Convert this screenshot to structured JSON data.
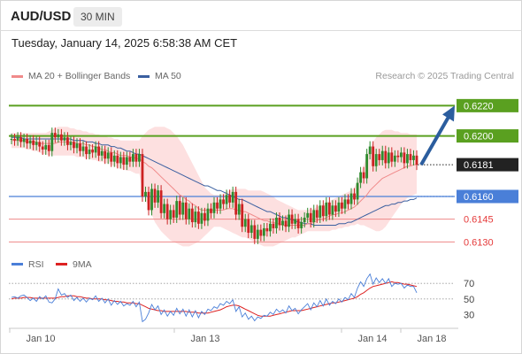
{
  "header": {
    "symbol": "AUD/USD",
    "timeframe": "30 MIN",
    "datetime": "Tuesday, January 14, 2025 6:58:38 AM CET"
  },
  "legend": {
    "ma20_label": "MA 20 + Bollinger Bands",
    "ma20_color": "#f08a8a",
    "ma50_label": "MA 50",
    "ma50_color": "#3a5fa0"
  },
  "credit": "Research © 2025 Trading Central",
  "colors": {
    "up": "#2e8b2e",
    "down": "#cc2222",
    "resistance": "#5aa020",
    "pivot": "#4a7fd8",
    "support": "#ee8888",
    "band": "#fde0e0",
    "rsi": "#4a7fd8",
    "rsi_ma": "#dd2222",
    "arrow": "#2b5d9e"
  },
  "chart_data": [
    {
      "type": "candlestick",
      "x_ticks": [
        "Jan 10",
        "Jan 13",
        "Jan 14",
        "Jan 18"
      ],
      "y_range": [
        0.6122,
        0.6236
      ],
      "levels": [
        {
          "value": 0.622,
          "label": "0.6220",
          "kind": "resistance"
        },
        {
          "value": 0.62,
          "label": "0.6200",
          "kind": "resistance"
        },
        {
          "value": 0.6181,
          "label": "0.6181",
          "kind": "current"
        },
        {
          "value": 0.616,
          "label": "0.6160",
          "kind": "pivot"
        },
        {
          "value": 0.6145,
          "label": "0.6145",
          "kind": "support"
        },
        {
          "value": 0.613,
          "label": "0.6130",
          "kind": "support"
        }
      ],
      "close": [
        0.6198,
        0.6197,
        0.6199,
        0.6196,
        0.6198,
        0.6195,
        0.6197,
        0.6194,
        0.6196,
        0.6193,
        0.6191,
        0.6194,
        0.619,
        0.6202,
        0.6199,
        0.6201,
        0.6197,
        0.6199,
        0.6194,
        0.6196,
        0.6192,
        0.6195,
        0.619,
        0.6193,
        0.6188,
        0.6191,
        0.6189,
        0.6193,
        0.6187,
        0.619,
        0.6185,
        0.6189,
        0.6183,
        0.6187,
        0.6182,
        0.6186,
        0.6181,
        0.6186,
        0.6183,
        0.6188,
        0.6183,
        0.6188,
        0.616,
        0.6163,
        0.6151,
        0.6165,
        0.6156,
        0.6164,
        0.6149,
        0.6155,
        0.6145,
        0.6151,
        0.6146,
        0.6157,
        0.6148,
        0.6156,
        0.6145,
        0.6152,
        0.6143,
        0.615,
        0.6142,
        0.6149,
        0.6144,
        0.6152,
        0.6149,
        0.6156,
        0.6152,
        0.6158,
        0.6155,
        0.6161,
        0.6156,
        0.6163,
        0.6148,
        0.6155,
        0.614,
        0.6145,
        0.6136,
        0.6141,
        0.6132,
        0.6138,
        0.6134,
        0.6139,
        0.6137,
        0.6142,
        0.6139,
        0.6146,
        0.6141,
        0.6144,
        0.614,
        0.6148,
        0.6142,
        0.6145,
        0.6139,
        0.6143,
        0.6146,
        0.6149,
        0.6143,
        0.6151,
        0.6146,
        0.6154,
        0.6147,
        0.6156,
        0.6148,
        0.6154,
        0.615,
        0.6156,
        0.6152,
        0.6158,
        0.6155,
        0.6162,
        0.6158,
        0.6169,
        0.6176,
        0.6172,
        0.6188,
        0.6193,
        0.618,
        0.6188,
        0.6184,
        0.619,
        0.6182,
        0.6189,
        0.6183,
        0.6187,
        0.6186,
        0.6189,
        0.6182,
        0.6188,
        0.6184,
        0.6187,
        0.6181
      ],
      "ma20": [
        0.6197,
        0.6197,
        0.6197,
        0.6197,
        0.6197,
        0.6196,
        0.6196,
        0.6196,
        0.6196,
        0.6195,
        0.6195,
        0.6195,
        0.6195,
        0.6195,
        0.6195,
        0.6196,
        0.6196,
        0.6196,
        0.6196,
        0.6196,
        0.6196,
        0.6195,
        0.6195,
        0.6195,
        0.6194,
        0.6194,
        0.6193,
        0.6193,
        0.6192,
        0.6191,
        0.6191,
        0.619,
        0.6189,
        0.6189,
        0.6188,
        0.6187,
        0.6187,
        0.6187,
        0.6186,
        0.6186,
        0.6185,
        0.6185,
        0.6183,
        0.6182,
        0.618,
        0.6179,
        0.6177,
        0.6175,
        0.6173,
        0.6171,
        0.6169,
        0.6167,
        0.6165,
        0.6163,
        0.6161,
        0.616,
        0.6158,
        0.6157,
        0.6155,
        0.6154,
        0.6152,
        0.6151,
        0.6151,
        0.6151,
        0.6151,
        0.6151,
        0.6151,
        0.6151,
        0.6151,
        0.6152,
        0.6152,
        0.6152,
        0.6151,
        0.6151,
        0.615,
        0.615,
        0.6149,
        0.6148,
        0.6147,
        0.6146,
        0.6145,
        0.6144,
        0.6144,
        0.6143,
        0.6143,
        0.6142,
        0.6142,
        0.6141,
        0.6141,
        0.6141,
        0.6141,
        0.6141,
        0.6141,
        0.6141,
        0.6141,
        0.6142,
        0.6142,
        0.6143,
        0.6144,
        0.6145,
        0.6145,
        0.6146,
        0.6147,
        0.6148,
        0.6148,
        0.6149,
        0.6149,
        0.615,
        0.6151,
        0.6152,
        0.6153,
        0.6155,
        0.6157,
        0.6159,
        0.6161,
        0.6164,
        0.6166,
        0.6168,
        0.617,
        0.6172,
        0.6173,
        0.6174,
        0.6175,
        0.6176,
        0.6177,
        0.6178,
        0.6179,
        0.618,
        0.618,
        0.6181,
        0.6181
      ],
      "bb_upper": [
        0.6202,
        0.6202,
        0.6202,
        0.6202,
        0.6202,
        0.6202,
        0.6202,
        0.6202,
        0.6202,
        0.6202,
        0.6202,
        0.6202,
        0.6203,
        0.6204,
        0.6205,
        0.6206,
        0.6206,
        0.6206,
        0.6206,
        0.6205,
        0.6205,
        0.6204,
        0.6204,
        0.6203,
        0.6203,
        0.6202,
        0.6202,
        0.6201,
        0.6201,
        0.62,
        0.62,
        0.6199,
        0.6199,
        0.6198,
        0.6198,
        0.6197,
        0.6197,
        0.6197,
        0.6197,
        0.6197,
        0.6197,
        0.6197,
        0.62,
        0.6202,
        0.6204,
        0.6205,
        0.6206,
        0.6206,
        0.6206,
        0.6206,
        0.6205,
        0.6204,
        0.6202,
        0.62,
        0.6197,
        0.6194,
        0.619,
        0.6186,
        0.6182,
        0.6178,
        0.6174,
        0.617,
        0.6166,
        0.6164,
        0.6162,
        0.6161,
        0.6161,
        0.6161,
        0.6162,
        0.6163,
        0.6164,
        0.6165,
        0.6165,
        0.6165,
        0.6165,
        0.6165,
        0.6164,
        0.6164,
        0.6164,
        0.6164,
        0.6164,
        0.6163,
        0.6162,
        0.6161,
        0.616,
        0.6158,
        0.6157,
        0.6156,
        0.6155,
        0.6154,
        0.6153,
        0.6152,
        0.6151,
        0.6151,
        0.6151,
        0.6151,
        0.6152,
        0.6152,
        0.6153,
        0.6154,
        0.6155,
        0.6156,
        0.6157,
        0.6158,
        0.6159,
        0.616,
        0.6161,
        0.6162,
        0.6163,
        0.6164,
        0.6166,
        0.617,
        0.6175,
        0.6181,
        0.6187,
        0.6192,
        0.6196,
        0.6199,
        0.6201,
        0.6203,
        0.6204,
        0.6204,
        0.6204,
        0.6203,
        0.6203,
        0.6202,
        0.6202,
        0.6202,
        0.6201,
        0.6201,
        0.6201
      ],
      "bb_lower": [
        0.6192,
        0.6192,
        0.6192,
        0.6192,
        0.6192,
        0.6191,
        0.6191,
        0.619,
        0.619,
        0.6189,
        0.6188,
        0.6188,
        0.6187,
        0.6187,
        0.6187,
        0.6187,
        0.6187,
        0.6187,
        0.6187,
        0.6187,
        0.6187,
        0.6186,
        0.6186,
        0.6186,
        0.6185,
        0.6185,
        0.6184,
        0.6184,
        0.6183,
        0.6183,
        0.6182,
        0.6182,
        0.6181,
        0.618,
        0.6179,
        0.6178,
        0.6178,
        0.6177,
        0.6177,
        0.6176,
        0.6175,
        0.6175,
        0.6164,
        0.6158,
        0.6153,
        0.6148,
        0.6143,
        0.614,
        0.6137,
        0.6135,
        0.6133,
        0.6131,
        0.613,
        0.6129,
        0.6128,
        0.6127,
        0.6127,
        0.6127,
        0.6128,
        0.6129,
        0.613,
        0.6132,
        0.6134,
        0.6136,
        0.6138,
        0.614,
        0.614,
        0.614,
        0.6139,
        0.6138,
        0.6137,
        0.6136,
        0.6135,
        0.6134,
        0.6133,
        0.6133,
        0.6132,
        0.6131,
        0.613,
        0.6129,
        0.6128,
        0.6127,
        0.6127,
        0.6127,
        0.6127,
        0.6128,
        0.6129,
        0.613,
        0.6131,
        0.6132,
        0.6133,
        0.6133,
        0.6134,
        0.6135,
        0.6136,
        0.6137,
        0.6137,
        0.6137,
        0.6137,
        0.6137,
        0.6137,
        0.6137,
        0.6137,
        0.6138,
        0.6138,
        0.6139,
        0.6139,
        0.614,
        0.614,
        0.6141,
        0.6141,
        0.6142,
        0.6141,
        0.6141,
        0.614,
        0.6139,
        0.6138,
        0.6137,
        0.6137,
        0.6138,
        0.614,
        0.6143,
        0.6146,
        0.6149,
        0.6152,
        0.6155,
        0.6157,
        0.6159,
        0.616,
        0.6161,
        0.6162
      ],
      "ma50": [
        0.6199,
        0.6199,
        0.6199,
        0.6199,
        0.6198,
        0.6198,
        0.6198,
        0.6198,
        0.6198,
        0.6198,
        0.6198,
        0.6198,
        0.6198,
        0.6198,
        0.6198,
        0.6198,
        0.6198,
        0.6198,
        0.6198,
        0.6198,
        0.6197,
        0.6197,
        0.6197,
        0.6197,
        0.6196,
        0.6196,
        0.6196,
        0.6195,
        0.6195,
        0.6194,
        0.6194,
        0.6194,
        0.6193,
        0.6193,
        0.6192,
        0.6192,
        0.6191,
        0.619,
        0.619,
        0.6189,
        0.6188,
        0.6188,
        0.6187,
        0.6186,
        0.6185,
        0.6184,
        0.6183,
        0.6182,
        0.6181,
        0.618,
        0.6179,
        0.6178,
        0.6177,
        0.6176,
        0.6175,
        0.6174,
        0.6173,
        0.6172,
        0.6171,
        0.617,
        0.6169,
        0.6168,
        0.6167,
        0.6167,
        0.6166,
        0.6165,
        0.6164,
        0.6164,
        0.6163,
        0.6162,
        0.6161,
        0.616,
        0.6159,
        0.6158,
        0.6158,
        0.6157,
        0.6156,
        0.6155,
        0.6154,
        0.6153,
        0.6152,
        0.6151,
        0.615,
        0.615,
        0.6149,
        0.6148,
        0.6147,
        0.6146,
        0.6146,
        0.6145,
        0.6145,
        0.6144,
        0.6143,
        0.6143,
        0.6142,
        0.6142,
        0.6142,
        0.6141,
        0.6141,
        0.6141,
        0.6141,
        0.6141,
        0.6141,
        0.6141,
        0.6141,
        0.6142,
        0.6142,
        0.6142,
        0.6143,
        0.6143,
        0.6144,
        0.6145,
        0.6146,
        0.6147,
        0.6148,
        0.6149,
        0.615,
        0.6151,
        0.6152,
        0.6153,
        0.6154,
        0.6154,
        0.6155,
        0.6155,
        0.6156,
        0.6156,
        0.6157,
        0.6157,
        0.6158,
        0.6158,
        0.6159
      ]
    },
    {
      "type": "line",
      "legend": [
        "RSI",
        "9MA"
      ],
      "y_ticks": [
        "70",
        "50",
        "30"
      ],
      "y_range": [
        18,
        85
      ],
      "rsi": [
        52,
        53,
        51,
        54,
        55,
        52,
        48,
        51,
        47,
        53,
        50,
        54,
        46,
        45,
        50,
        63,
        55,
        57,
        52,
        55,
        48,
        52,
        47,
        51,
        46,
        51,
        49,
        54,
        47,
        51,
        45,
        50,
        42,
        48,
        43,
        47,
        41,
        44,
        42,
        47,
        40,
        46,
        21,
        24,
        32,
        43,
        36,
        41,
        30,
        36,
        28,
        34,
        29,
        38,
        31,
        37,
        28,
        36,
        27,
        35,
        26,
        34,
        30,
        37,
        35,
        40,
        38,
        44,
        42,
        47,
        44,
        49,
        34,
        40,
        27,
        32,
        24,
        28,
        22,
        27,
        25,
        29,
        28,
        33,
        30,
        37,
        33,
        36,
        32,
        41,
        35,
        38,
        31,
        36,
        40,
        44,
        36,
        45,
        40,
        48,
        41,
        50,
        42,
        47,
        44,
        50,
        46,
        52,
        49,
        57,
        52,
        64,
        72,
        66,
        76,
        82,
        69,
        77,
        71,
        76,
        70,
        76,
        66,
        70,
        69,
        70,
        64,
        68,
        66,
        66,
        58
      ],
      "ma9": [
        50,
        51,
        51,
        51,
        52,
        52,
        52,
        51,
        51,
        51,
        51,
        51,
        51,
        51,
        51,
        52,
        53,
        53,
        54,
        54,
        54,
        53,
        53,
        52,
        51,
        51,
        50,
        50,
        50,
        50,
        49,
        49,
        48,
        47,
        47,
        46,
        46,
        45,
        45,
        45,
        44,
        44,
        42,
        40,
        38,
        37,
        36,
        35,
        35,
        34,
        34,
        34,
        34,
        34,
        34,
        34,
        34,
        33,
        33,
        33,
        32,
        32,
        32,
        32,
        33,
        34,
        35,
        36,
        38,
        40,
        41,
        42,
        42,
        41,
        39,
        37,
        35,
        33,
        31,
        29,
        28,
        28,
        28,
        28,
        29,
        30,
        31,
        32,
        33,
        34,
        35,
        35,
        35,
        35,
        36,
        37,
        38,
        39,
        40,
        41,
        42,
        43,
        44,
        45,
        45,
        46,
        47,
        48,
        49,
        50,
        51,
        53,
        56,
        58,
        61,
        64,
        66,
        67,
        68,
        69,
        70,
        71,
        72,
        71,
        71,
        70,
        69,
        69,
        68,
        67,
        66
      ]
    }
  ]
}
